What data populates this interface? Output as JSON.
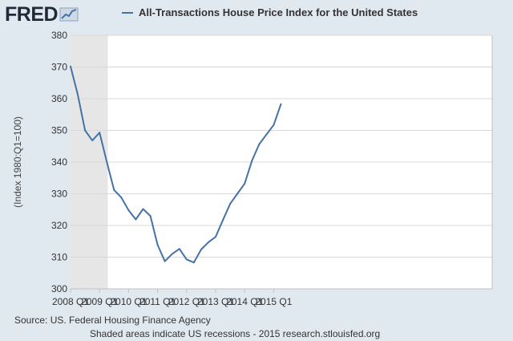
{
  "logo": {
    "text": "FRED",
    "icon": "line-graph-icon"
  },
  "colors": {
    "series": "#4572a7",
    "recession": "#e6e6e6",
    "background": "#e1e9f0",
    "plot": "#ffffff",
    "grid": "#d8d8d8"
  },
  "chart_data": {
    "type": "line",
    "title": "",
    "xlabel": "",
    "ylabel": "(Index 1980:Q1=100)",
    "ylim": [
      300,
      380
    ],
    "yticks": [
      "300",
      "310",
      "320",
      "330",
      "340",
      "350",
      "360",
      "370",
      "380"
    ],
    "xticks": [
      "2008 Q1",
      "2009 Q1",
      "2010 Q1",
      "2011 Q1",
      "2012 Q1",
      "2013 Q1",
      "2014 Q1",
      "2015 Q1"
    ],
    "grid": "horizontal",
    "legend_position": "top",
    "recession_shading": {
      "start": "2008 Q1",
      "end": "2009 Q2"
    },
    "series": [
      {
        "name": "All-Transactions House Price Index for the United States",
        "x": [
          "2008 Q1",
          "2008 Q2",
          "2008 Q3",
          "2008 Q4",
          "2009 Q1",
          "2009 Q2",
          "2009 Q3",
          "2009 Q4",
          "2010 Q1",
          "2010 Q2",
          "2010 Q3",
          "2010 Q4",
          "2011 Q1",
          "2011 Q2",
          "2011 Q3",
          "2011 Q4",
          "2012 Q1",
          "2012 Q2",
          "2012 Q3",
          "2012 Q4",
          "2013 Q1",
          "2013 Q2",
          "2013 Q3",
          "2013 Q4",
          "2014 Q1",
          "2014 Q2",
          "2014 Q3",
          "2014 Q4",
          "2015 Q1",
          "2015 Q2"
        ],
        "values": [
          370.2,
          361.3,
          350.0,
          346.8,
          349.3,
          340.0,
          331.2,
          328.8,
          324.8,
          321.9,
          325.2,
          323.0,
          313.9,
          308.7,
          311.0,
          312.6,
          309.3,
          308.3,
          312.4,
          314.7,
          316.4,
          321.7,
          326.8,
          330.0,
          333.2,
          340.4,
          345.6,
          348.7,
          351.7,
          358.3
        ]
      }
    ]
  },
  "footer": {
    "source": "Source: US. Federal Housing Finance Agency",
    "note": "Shaded areas indicate US recessions - 2015 research.stlouisfed.org"
  }
}
